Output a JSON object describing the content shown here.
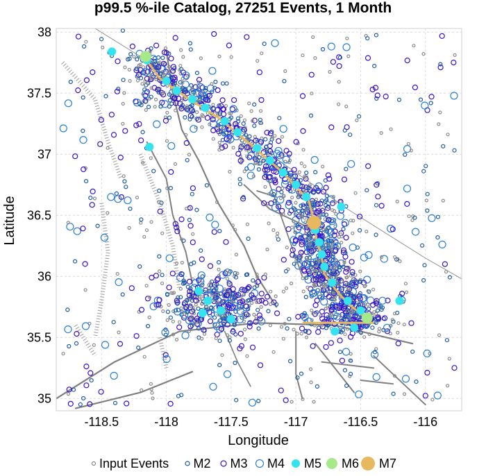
{
  "chart_data": {
    "type": "scatter",
    "title": "p99.5 %-ile Catalog, 27251 Events, 1 Month",
    "xlabel": "Longitude",
    "ylabel": "Latitude",
    "xlim": [
      -118.85,
      -115.72
    ],
    "ylim": [
      34.9,
      38.03
    ],
    "xticks": [
      -118.5,
      -118,
      -117.5,
      -117,
      -116.5,
      -116
    ],
    "xtick_labels": [
      "-118.5",
      "-118",
      "-117.5",
      "-117",
      "-116.5",
      "-116"
    ],
    "yticks": [
      35,
      35.5,
      36,
      36.5,
      37,
      37.5,
      38
    ],
    "ytick_labels": [
      "35",
      "35.5",
      "36",
      "36.5",
      "37",
      "37.5",
      "38"
    ],
    "grid": true,
    "legend_position": "bottom",
    "legend": [
      {
        "name": "Input Events",
        "marker": "open-circle",
        "size": 2,
        "color": "#8a8a8a"
      },
      {
        "name": "M2",
        "marker": "open-circle",
        "size": 2.5,
        "color": "#1e5aa8"
      },
      {
        "name": "M3",
        "marker": "open-circle",
        "size": 3.5,
        "color": "#3a0fd0"
      },
      {
        "name": "M4",
        "marker": "open-circle",
        "size": 5,
        "color": "#2a7fd6"
      },
      {
        "name": "M5",
        "marker": "filled-circle",
        "size": 6,
        "color": "#35e3ef"
      },
      {
        "name": "M6",
        "marker": "filled-circle",
        "size": 8,
        "color": "#a7e88a"
      },
      {
        "name": "M7",
        "marker": "filled-circle",
        "size": 10,
        "color": "#e8b860"
      }
    ],
    "rupture_trace": {
      "color": "#e8b860",
      "points": [
        [
          -118.16,
          37.78
        ],
        [
          -118.05,
          37.62
        ],
        [
          -117.85,
          37.47
        ],
        [
          -117.6,
          37.3
        ],
        [
          -117.35,
          37.08
        ],
        [
          -117.1,
          36.85
        ],
        [
          -116.9,
          36.62
        ],
        [
          -116.86,
          36.45
        ],
        [
          -116.84,
          36.3
        ],
        [
          -116.8,
          36.15
        ],
        [
          -116.78,
          36.02
        ],
        [
          -116.7,
          35.9
        ],
        [
          -116.6,
          35.78
        ],
        [
          -116.45,
          35.65
        ]
      ]
    },
    "clusters": [
      {
        "name": "rupture-zone",
        "points": [
          [
            -118.16,
            37.78
          ],
          [
            -118.05,
            37.62
          ],
          [
            -117.85,
            37.47
          ],
          [
            -117.6,
            37.3
          ],
          [
            -117.35,
            37.08
          ],
          [
            -117.1,
            36.85
          ],
          [
            -116.9,
            36.62
          ],
          [
            -116.86,
            36.45
          ],
          [
            -116.84,
            36.3
          ],
          [
            -116.8,
            36.15
          ],
          [
            -116.78,
            36.02
          ],
          [
            -116.7,
            35.9
          ],
          [
            -116.6,
            35.78
          ],
          [
            -116.45,
            35.65
          ]
        ],
        "spread": 0.14,
        "count": 1300
      },
      {
        "name": "coso-cluster",
        "center": [
          -117.62,
          35.78
        ],
        "spread_x": 0.22,
        "spread_y": 0.14,
        "count": 380
      },
      {
        "name": "southern-strand",
        "center": [
          -116.62,
          35.62
        ],
        "spread_x": 0.22,
        "spread_y": 0.05,
        "count": 120
      },
      {
        "name": "background",
        "xrange": [
          -118.8,
          -115.75
        ],
        "yrange": [
          34.95,
          38.0
        ],
        "count": 480
      }
    ],
    "m5_events": [
      [
        -118.15,
        37.77
      ],
      [
        -118.0,
        37.6
      ],
      [
        -117.92,
        37.52
      ],
      [
        -117.8,
        37.45
      ],
      [
        -117.7,
        37.38
      ],
      [
        -117.55,
        37.27
      ],
      [
        -117.45,
        37.18
      ],
      [
        -117.3,
        37.05
      ],
      [
        -117.2,
        36.95
      ],
      [
        -117.1,
        36.85
      ],
      [
        -117.0,
        36.75
      ],
      [
        -116.92,
        36.65
      ],
      [
        -116.85,
        36.38
      ],
      [
        -116.82,
        36.28
      ],
      [
        -116.8,
        36.18
      ],
      [
        -116.78,
        36.08
      ],
      [
        -116.72,
        35.95
      ],
      [
        -116.6,
        35.8
      ],
      [
        -116.5,
        35.72
      ],
      [
        -116.45,
        35.66
      ],
      [
        -116.7,
        35.55
      ],
      [
        -116.55,
        35.58
      ],
      [
        -116.65,
        36.57
      ],
      [
        -118.42,
        37.84
      ],
      [
        -118.13,
        37.06
      ],
      [
        -117.75,
        35.88
      ],
      [
        -117.68,
        35.8
      ],
      [
        -117.58,
        35.72
      ],
      [
        -117.5,
        35.65
      ],
      [
        -117.72,
        35.7
      ],
      [
        -116.2,
        35.8
      ]
    ],
    "m6_events": [
      [
        -118.16,
        37.8
      ],
      [
        -116.45,
        35.66
      ]
    ],
    "m7_events": [
      [
        -116.86,
        36.44
      ]
    ],
    "orange_segments": [
      [
        [
          -116.95,
          35.62
        ],
        [
          -116.4,
          35.62
        ]
      ]
    ]
  }
}
